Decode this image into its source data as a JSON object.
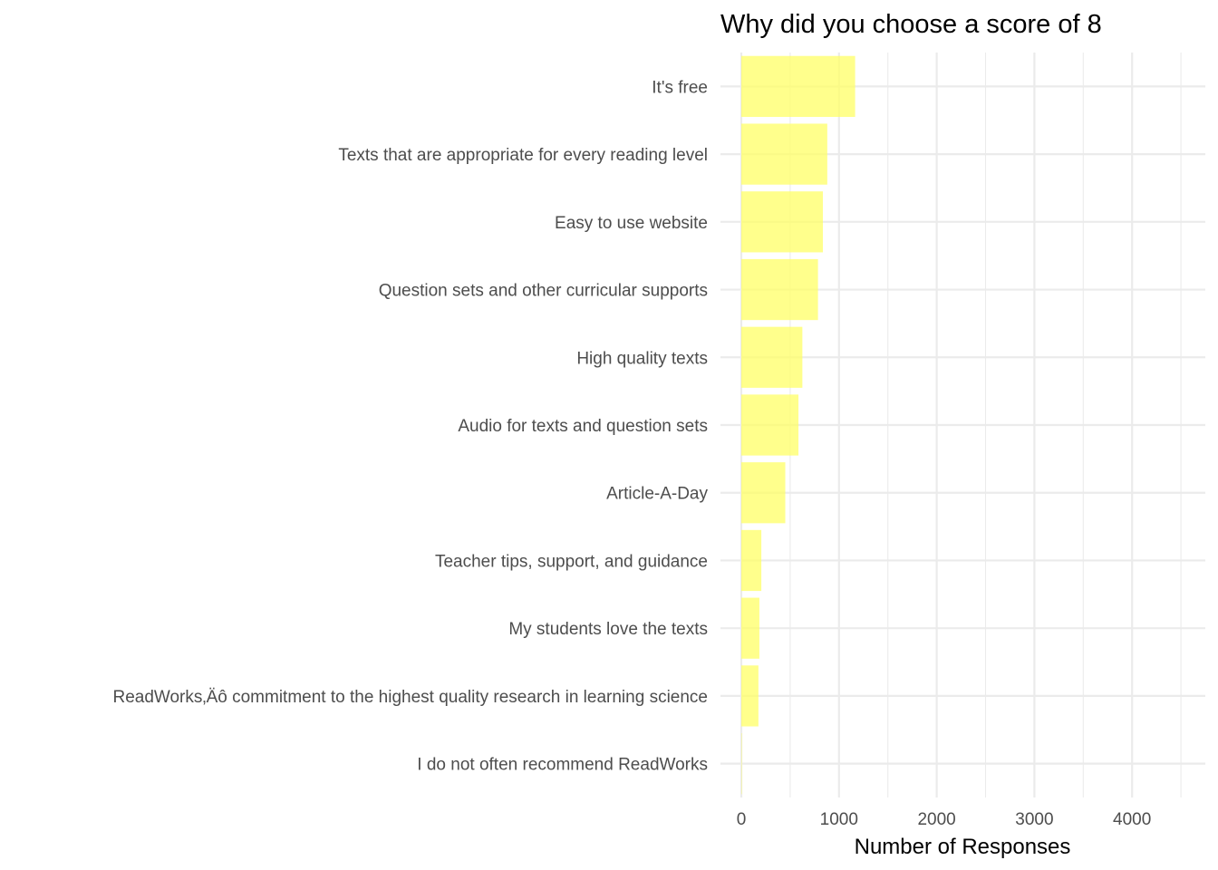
{
  "chart_data": {
    "type": "bar",
    "orientation": "horizontal",
    "title": "Why did you choose a score of 8",
    "xlabel": "Number of Responses",
    "ylabel": "",
    "xlim": [
      0,
      4700
    ],
    "xticks": [
      0,
      1000,
      2000,
      3000,
      4000
    ],
    "grid": true,
    "bar_color": "#ffff66",
    "categories": [
      "It's free",
      "Texts that are appropriate for every reading level",
      "Easy to use website",
      "Question sets and other curricular supports",
      "High quality texts",
      "Audio for texts and question sets",
      "Article-A-Day",
      "Teacher tips, support, and guidance",
      "My students love the texts",
      "ReadWorks‚Äô commitment to the highest quality research in learning science",
      "I do not often recommend ReadWorks"
    ],
    "values": [
      1165,
      880,
      835,
      785,
      625,
      585,
      450,
      205,
      185,
      175,
      5
    ]
  }
}
